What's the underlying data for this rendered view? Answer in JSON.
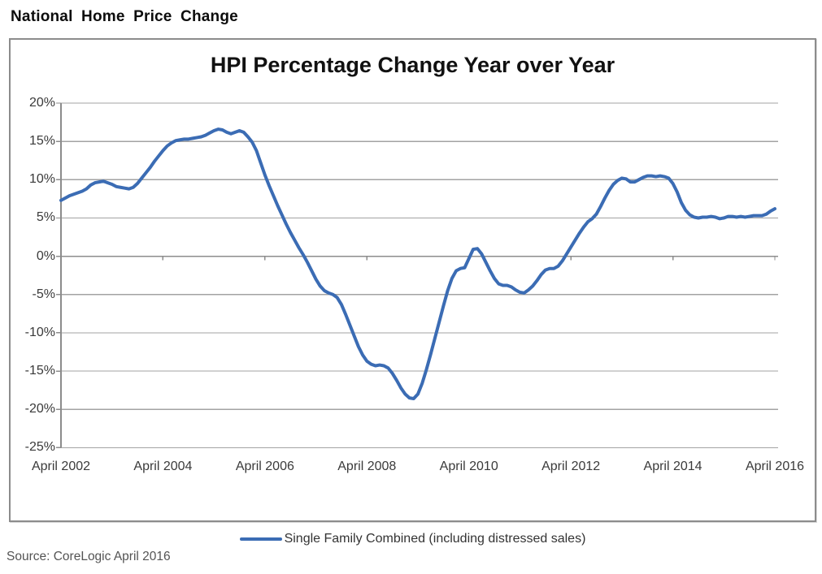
{
  "page": {
    "title": "National Home Price Change",
    "source": "Source: CoreLogic April 2016"
  },
  "chart": {
    "title": "HPI Percentage Change Year over Year",
    "legend": {
      "label": "Single Family Combined (including distressed sales)"
    },
    "colors": {
      "series_line": "#3B6CB4",
      "gridline": "#A3A3A3",
      "axis": "#8C8C8C",
      "tick_text": "#3A3A3A"
    }
  },
  "chart_data": {
    "type": "line",
    "title": "HPI Percentage Change Year over Year",
    "xlabel": "",
    "ylabel": "",
    "ylim": [
      -25,
      20
    ],
    "y_grid_step": 5,
    "grid": true,
    "legend_position": "bottom",
    "y_tick_labels": [
      "20%",
      "15%",
      "10%",
      "5%",
      "0%",
      "-5%",
      "-10%",
      "-15%",
      "-20%",
      "-25%"
    ],
    "y_tick_values": [
      20,
      15,
      10,
      5,
      0,
      -5,
      -10,
      -15,
      -20,
      -25
    ],
    "x_tick_labels": [
      "April 2002",
      "April 2004",
      "April 2006",
      "April 2008",
      "April 2010",
      "April 2012",
      "April 2014",
      "April 2016"
    ],
    "x_tick_month_index": [
      0,
      24,
      48,
      72,
      96,
      120,
      144,
      168
    ],
    "series": [
      {
        "name": "Single Family Combined (including distressed sales)",
        "color": "#3B6CB4",
        "frequency": "monthly",
        "x_start": "April 2002",
        "x_end": "April 2016",
        "values": [
          7.3,
          7.6,
          7.9,
          8.1,
          8.3,
          8.5,
          8.8,
          9.3,
          9.6,
          9.7,
          9.8,
          9.6,
          9.4,
          9.1,
          9.0,
          8.9,
          8.8,
          9.0,
          9.5,
          10.2,
          10.9,
          11.6,
          12.4,
          13.1,
          13.8,
          14.4,
          14.8,
          15.1,
          15.2,
          15.3,
          15.3,
          15.4,
          15.5,
          15.6,
          15.8,
          16.1,
          16.4,
          16.6,
          16.5,
          16.2,
          16.0,
          16.2,
          16.4,
          16.2,
          15.6,
          14.9,
          13.8,
          12.2,
          10.6,
          9.2,
          7.9,
          6.6,
          5.4,
          4.2,
          3.1,
          2.1,
          1.1,
          0.2,
          -0.8,
          -1.9,
          -3.0,
          -3.9,
          -4.5,
          -4.8,
          -5.0,
          -5.4,
          -6.3,
          -7.6,
          -9.0,
          -10.4,
          -11.8,
          -12.9,
          -13.7,
          -14.1,
          -14.3,
          -14.2,
          -14.3,
          -14.6,
          -15.3,
          -16.2,
          -17.2,
          -18.0,
          -18.5,
          -18.6,
          -18.0,
          -16.6,
          -14.8,
          -12.8,
          -10.7,
          -8.6,
          -6.5,
          -4.5,
          -2.9,
          -1.9,
          -1.6,
          -1.5,
          -0.3,
          0.9,
          1.0,
          0.3,
          -0.8,
          -1.9,
          -2.9,
          -3.6,
          -3.8,
          -3.8,
          -4.0,
          -4.4,
          -4.7,
          -4.8,
          -4.4,
          -3.9,
          -3.2,
          -2.4,
          -1.8,
          -1.6,
          -1.6,
          -1.3,
          -0.6,
          0.3,
          1.2,
          2.1,
          3.0,
          3.8,
          4.5,
          4.9,
          5.5,
          6.5,
          7.6,
          8.6,
          9.4,
          9.9,
          10.2,
          10.1,
          9.7,
          9.7,
          10.0,
          10.3,
          10.5,
          10.5,
          10.4,
          10.5,
          10.4,
          10.2,
          9.5,
          8.4,
          7.0,
          6.0,
          5.4,
          5.1,
          5.0,
          5.1,
          5.1,
          5.2,
          5.1,
          4.9,
          5.0,
          5.2,
          5.2,
          5.1,
          5.2,
          5.1,
          5.2,
          5.3,
          5.3,
          5.3,
          5.5,
          5.9,
          6.2
        ]
      }
    ]
  }
}
